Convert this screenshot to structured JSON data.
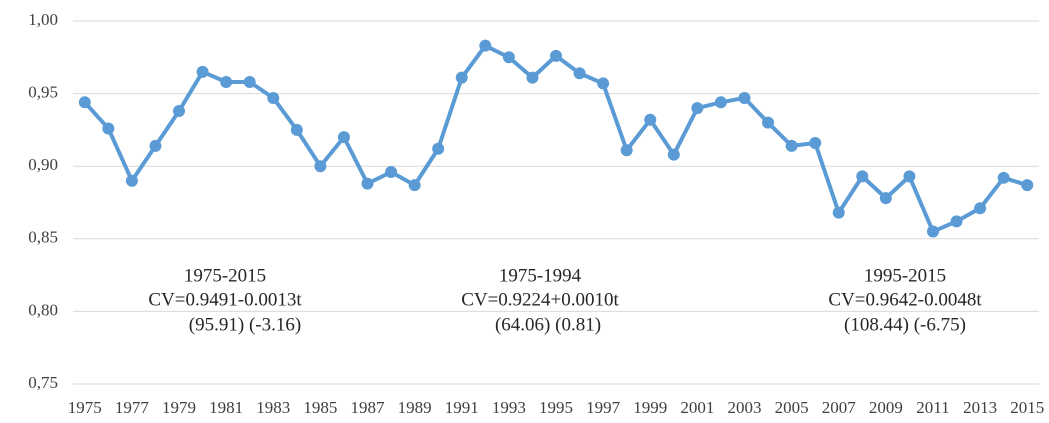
{
  "chart_data": {
    "type": "line",
    "categories": [
      "1975",
      null,
      "1977",
      null,
      "1979",
      null,
      "1981",
      null,
      "1983",
      null,
      "1985",
      null,
      "1987",
      null,
      "1989",
      null,
      "1991",
      null,
      "1993",
      null,
      "1995",
      null,
      "1997",
      null,
      "1999",
      null,
      "2001",
      null,
      "2003",
      null,
      "2005",
      null,
      "2007",
      null,
      "2009",
      null,
      "2011",
      null,
      "2013",
      null,
      "2015"
    ],
    "series": [
      {
        "color": "#5b9bd5",
        "values": [
          0.944,
          0.926,
          0.89,
          0.914,
          0.938,
          0.965,
          0.958,
          0.958,
          0.947,
          0.925,
          0.9,
          0.92,
          0.888,
          0.896,
          0.887,
          0.912,
          0.961,
          0.983,
          0.975,
          0.961,
          0.976,
          0.964,
          0.957,
          0.911,
          0.932,
          0.908,
          0.94,
          0.944,
          0.947,
          0.93,
          0.914,
          0.916,
          0.868,
          0.893,
          0.878,
          0.893,
          0.855,
          0.862,
          0.871,
          0.892,
          0.887
        ]
      }
    ],
    "ylim": [
      0.75,
      1.0
    ],
    "yticks": [
      {
        "value": 0.75,
        "label": "0,75"
      },
      {
        "value": 0.8,
        "label": "0,80"
      },
      {
        "value": 0.85,
        "label": "0,85"
      },
      {
        "value": 0.9,
        "label": "0,90"
      },
      {
        "value": 0.95,
        "label": "0,95"
      },
      {
        "value": 1.0,
        "label": "1,00"
      }
    ],
    "grid": true,
    "annotations": [
      [
        "1975-2015",
        "CV=0.9491-0.0013t",
        "(95.91) (-3.16)"
      ],
      [
        "1975-1994",
        "CV=0.9224+0.0010t",
        "(64.06) (0.81)"
      ],
      [
        "1995-2015",
        "CV=0.9642-0.0048t",
        "(108.44) (-6.75)"
      ]
    ]
  }
}
